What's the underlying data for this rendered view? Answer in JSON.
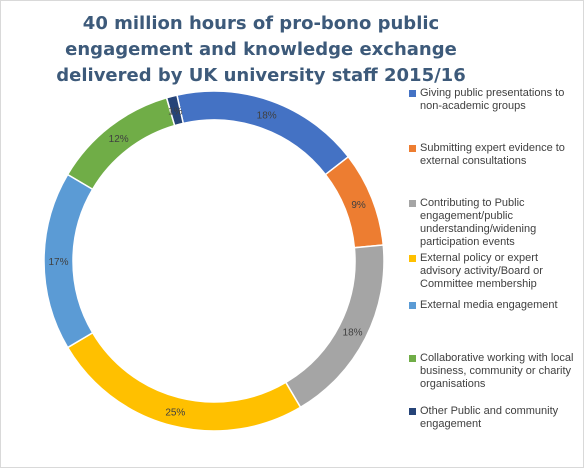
{
  "chart_data": {
    "type": "pie",
    "title": "40 million hours of pro-bono public engagement and knowledge exchange delivered by UK university staff 2015/16",
    "legend_placement": "right",
    "slices": [
      {
        "label": "Giving public presentations to non-academic groups",
        "value": 18,
        "value_label": "18%",
        "color": "#4472c4"
      },
      {
        "label": "Submitting expert evidence to external consultations",
        "value": 9,
        "value_label": "9%",
        "color": "#ed7d31"
      },
      {
        "label": "Contributing to Public engagement/public understanding/widening participation events",
        "value": 18,
        "value_label": "18%",
        "color": "#a5a5a5"
      },
      {
        "label": "External policy or expert advisory activity/Board or Committee membership",
        "value": 25,
        "value_label": "25%",
        "color": "#ffc000"
      },
      {
        "label": "External media engagement",
        "value": 17,
        "value_label": "17%",
        "color": "#5b9bd5"
      },
      {
        "label": "Collaborative working with local business, community or charity organisations",
        "value": 12,
        "value_label": "12%",
        "color": "#70ad47"
      },
      {
        "label": "Other Public and community engagement",
        "value": 1,
        "value_label": "1%",
        "color": "#264478"
      }
    ]
  }
}
